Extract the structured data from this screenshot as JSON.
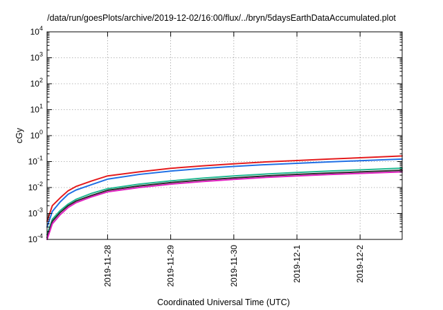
{
  "chart_data": {
    "type": "line",
    "title": "/data/run/goesPlots/archive/2019-12-02/16:00/flux/../bryn/5daysEarthDataAccumulated.plot",
    "xlabel": "Coordinated Universal Time (UTC)",
    "ylabel": "cGy",
    "y_scale": "log",
    "ylim": [
      0.0001,
      10000
    ],
    "xlim": [
      "2019-11-27T01:00",
      "2019-12-02T16:00"
    ],
    "x_ticks": [
      "2019-11-28",
      "2019-11-29",
      "2019-11-30",
      "2019-12-1",
      "2019-12-2"
    ],
    "x_tick_positions": [
      "2019-11-28T00:00",
      "2019-11-29T00:00",
      "2019-11-30T00:00",
      "2019-12-01T00:00",
      "2019-12-02T00:00"
    ],
    "y_ticks": [
      {
        "base": "10",
        "exp": "-4",
        "value": 0.0001
      },
      {
        "base": "10",
        "exp": "-3",
        "value": 0.001
      },
      {
        "base": "10",
        "exp": "-2",
        "value": 0.01
      },
      {
        "base": "10",
        "exp": "-1",
        "value": 0.1
      },
      {
        "base": "10",
        "exp": "0",
        "value": 1
      },
      {
        "base": "10",
        "exp": "1",
        "value": 10
      },
      {
        "base": "10",
        "exp": "2",
        "value": 100
      },
      {
        "base": "10",
        "exp": "3",
        "value": 1000
      },
      {
        "base": "10",
        "exp": "4",
        "value": 10000
      }
    ],
    "grid": true,
    "legend": "none",
    "x": [
      "2019-11-27T01:00",
      "2019-11-27T03:00",
      "2019-11-27T06:00",
      "2019-11-27T09:00",
      "2019-11-27T12:00",
      "2019-11-27T18:00",
      "2019-11-28T00:00",
      "2019-11-28T12:00",
      "2019-11-29T00:00",
      "2019-11-29T12:00",
      "2019-11-30T00:00",
      "2019-11-30T12:00",
      "2019-12-01T00:00",
      "2019-12-01T12:00",
      "2019-12-02T00:00",
      "2019-12-02T16:00"
    ],
    "series": [
      {
        "color": "#e41a1c",
        "values": [
          0.0005,
          0.002,
          0.004,
          0.0075,
          0.011,
          0.018,
          0.028,
          0.04,
          0.055,
          0.068,
          0.082,
          0.097,
          0.11,
          0.125,
          0.14,
          0.165
        ]
      },
      {
        "color": "#1f6fe5",
        "values": [
          0.0003,
          0.0012,
          0.0028,
          0.0055,
          0.008,
          0.013,
          0.021,
          0.032,
          0.043,
          0.054,
          0.065,
          0.076,
          0.086,
          0.097,
          0.108,
          0.125
        ]
      },
      {
        "color": "#20b890",
        "values": [
          0.00015,
          0.0006,
          0.0013,
          0.0023,
          0.0035,
          0.006,
          0.009,
          0.0135,
          0.018,
          0.023,
          0.028,
          0.033,
          0.038,
          0.043,
          0.048,
          0.056
        ]
      },
      {
        "color": "#2b2b2b",
        "values": [
          0.00012,
          0.0005,
          0.0011,
          0.002,
          0.003,
          0.005,
          0.0078,
          0.0115,
          0.0155,
          0.0195,
          0.0235,
          0.028,
          0.032,
          0.036,
          0.04,
          0.046
        ]
      },
      {
        "color": "#e020c0",
        "values": [
          0.0001,
          0.0004,
          0.0009,
          0.0017,
          0.0026,
          0.0044,
          0.0068,
          0.01,
          0.0135,
          0.017,
          0.0205,
          0.0245,
          0.028,
          0.0315,
          0.035,
          0.04
        ]
      }
    ]
  }
}
